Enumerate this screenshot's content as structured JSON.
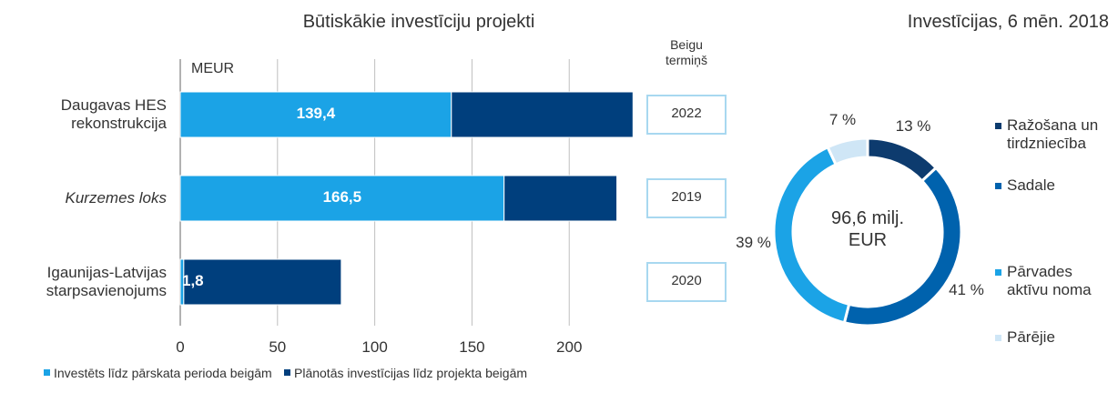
{
  "chart_data": [
    {
      "type": "hbar_stacked",
      "title": "Būtiskākie investīciju projekti",
      "axis_label": "MEUR",
      "categories": [
        "Daugavas HES rekonstrukcija",
        "Kurzemes loks",
        "Igaunijas-Latvijas starpsavienojums"
      ],
      "category_styles": [
        "normal",
        "italic",
        "normal"
      ],
      "series": [
        {
          "name": "Investēts līdz pārskata perioda beigām",
          "color": "#1ba3e6",
          "values": [
            139.4,
            166.5,
            1.8
          ],
          "value_labels": [
            "139,4",
            "166,5",
            "1,8"
          ]
        },
        {
          "name": "Plānotās investīcijas līdz projekta beigām",
          "color": "#003f7d",
          "values": [
            93.4,
            58,
            81
          ]
        }
      ],
      "xlim": [
        0,
        235
      ],
      "xticks": [
        0,
        50,
        100,
        150,
        200
      ],
      "grid": true,
      "end_term_label": "Beigu termiņš",
      "end_terms": [
        "2022",
        "2019",
        "2020"
      ],
      "legend": "bottom"
    },
    {
      "type": "donut",
      "title": "Investīcijas, 6 mēn. 2018",
      "center_label": "96,6 milj. EUR",
      "categories": [
        "Ražošana un tirdzniecība",
        "Sadale",
        "Pārvades aktīvu noma",
        "Pārējie"
      ],
      "values": [
        13,
        41,
        39,
        7
      ],
      "value_labels": [
        "13 %",
        "41 %",
        "39 %",
        "7 %"
      ],
      "colors": [
        "#0d3b6e",
        "#0062ad",
        "#1ba3e6",
        "#cfe6f6"
      ],
      "legend": "right"
    }
  ]
}
